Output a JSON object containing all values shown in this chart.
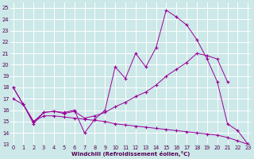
{
  "xlabel": "Windchill (Refroidissement éolien,°C)",
  "bg_color": "#cce8e8",
  "line_color": "#990099",
  "grid_color": "#ffffff",
  "curve_x": [
    0,
    1,
    2,
    3,
    4,
    5,
    6,
    7,
    8,
    9,
    10,
    11,
    12,
    13,
    14,
    15,
    16,
    17,
    18,
    19,
    20,
    21,
    22,
    23
  ],
  "curve_y": [
    18.0,
    16.5,
    14.8,
    15.8,
    15.9,
    15.8,
    16.0,
    14.0,
    15.2,
    16.0,
    19.8,
    18.8,
    21.0,
    19.8,
    21.5,
    24.8,
    24.2,
    23.5,
    22.2,
    20.5,
    18.5,
    14.8,
    14.2,
    13.0
  ],
  "rise_x": [
    0,
    1,
    2,
    3,
    4,
    5,
    6,
    7,
    8,
    9,
    10,
    11,
    12,
    13,
    14,
    15,
    16,
    17,
    18,
    19,
    20,
    21
  ],
  "rise_y": [
    17.0,
    16.5,
    15.0,
    15.8,
    15.9,
    15.7,
    15.9,
    15.3,
    15.5,
    15.8,
    16.3,
    16.7,
    17.2,
    17.6,
    18.2,
    19.0,
    19.6,
    20.2,
    21.0,
    20.8,
    20.5,
    18.5
  ],
  "fall_x": [
    0,
    1,
    2,
    3,
    4,
    5,
    6,
    7,
    8,
    9,
    10,
    11,
    12,
    13,
    14,
    15,
    16,
    17,
    18,
    19,
    20,
    21,
    22,
    23
  ],
  "fall_y": [
    18.0,
    16.5,
    15.0,
    15.5,
    15.5,
    15.4,
    15.3,
    15.2,
    15.1,
    15.0,
    14.8,
    14.7,
    14.6,
    14.5,
    14.4,
    14.3,
    14.2,
    14.1,
    14.0,
    13.9,
    13.8,
    13.6,
    13.3,
    13.0
  ],
  "xlim": [
    -0.3,
    23.3
  ],
  "ylim": [
    13,
    25.5
  ],
  "xticks": [
    0,
    1,
    2,
    3,
    4,
    5,
    6,
    7,
    8,
    9,
    10,
    11,
    12,
    13,
    14,
    15,
    16,
    17,
    18,
    19,
    20,
    21,
    22,
    23
  ],
  "yticks": [
    13,
    14,
    15,
    16,
    17,
    18,
    19,
    20,
    21,
    22,
    23,
    24,
    25
  ],
  "tick_color": "#550055",
  "label_fontsize": 5.0,
  "tick_fontsize": 4.8
}
